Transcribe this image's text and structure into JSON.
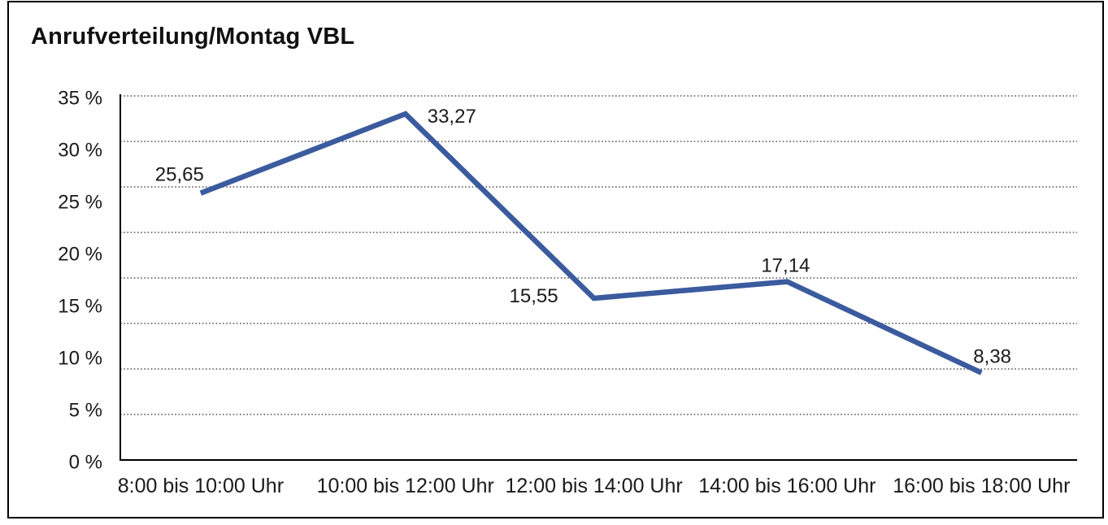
{
  "title": "Anrufverteilung/Montag VBL",
  "colors": {
    "line": "#3B5B9E",
    "grid": "#555555",
    "axis": "#000000",
    "text": "#1a1a1a",
    "background": "#ffffff",
    "frame_border": "#000000"
  },
  "chart_data": {
    "type": "line",
    "title": "Anrufverteilung/Montag VBL",
    "categories": [
      "8:00 bis 10:00 Uhr",
      "10:00 bis 12:00 Uhr",
      "12:00 bis 14:00 Uhr",
      "14:00 bis 16:00 Uhr",
      "16:00 bis 18:00 Uhr"
    ],
    "values": [
      25.65,
      33.27,
      15.55,
      17.14,
      8.38
    ],
    "value_labels": [
      "25,65",
      "33,27",
      "15,55",
      "17,14",
      "8,38"
    ],
    "xlabel": "",
    "ylabel": "",
    "ylim": [
      0,
      35
    ],
    "y_tick_step": 5,
    "y_tick_labels": [
      "35 %",
      "30 %",
      "25 %",
      "20 %",
      "15 %",
      "10 %",
      "5 %",
      "0 %"
    ],
    "grid": "horizontal-dotted",
    "legend_position": "none",
    "marker": "none"
  }
}
